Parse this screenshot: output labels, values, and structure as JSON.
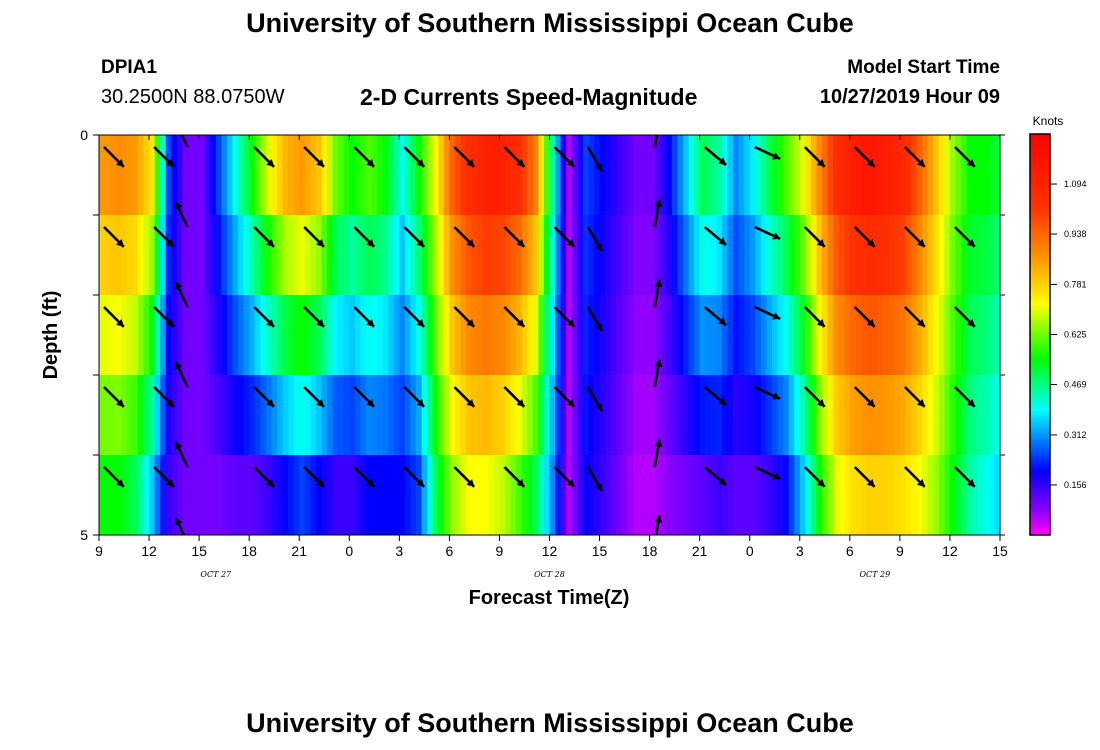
{
  "header": {
    "title": "University of Southern Mississippi Ocean Cube",
    "station_id": "DPIA1",
    "station_coords": "30.2500N 88.0750W",
    "subtitle": "2-D Currents Speed-Magnitude",
    "model_start_label": "Model Start Time",
    "model_start_value": "10/27/2019 Hour 09"
  },
  "footer": {
    "title": "University of Southern Mississippi Ocean Cube"
  },
  "chart_data": {
    "type": "heatmap",
    "title": "2-D Currents Speed-Magnitude",
    "xlabel": "Forecast Time(Z)",
    "ylabel": "Depth (ft)",
    "x_tick_labels": [
      "9",
      "12",
      "15",
      "18",
      "21",
      "0",
      "3",
      "6",
      "9",
      "12",
      "15",
      "18",
      "21",
      "0",
      "3",
      "6",
      "9",
      "12",
      "15"
    ],
    "x_date_labels": [
      {
        "label": "OCT 27",
        "hour_index": 7
      },
      {
        "label": "OCT 28",
        "hour_index": 27
      },
      {
        "label": "OCT 29",
        "hour_index": 46.5
      }
    ],
    "x_range_hours": [
      0,
      54
    ],
    "y_tick_labels": [
      "0",
      "5"
    ],
    "ylim": [
      0,
      5
    ],
    "depth_rows": 5,
    "colorbar": {
      "unit": "Knots",
      "ticks": [
        "1.094",
        "0.938",
        "0.781",
        "0.625",
        "0.469",
        "0.312",
        "0.156"
      ],
      "tick_values": [
        1.094,
        0.938,
        0.781,
        0.625,
        0.469,
        0.312,
        0.156
      ],
      "range": [
        0,
        1.25
      ],
      "stops": [
        {
          "v": 0.0,
          "c": "#ff00ff"
        },
        {
          "v": 0.08,
          "c": "#8a00ff"
        },
        {
          "v": 0.2,
          "c": "#0000ff"
        },
        {
          "v": 0.39,
          "c": "#00ffff"
        },
        {
          "v": 0.55,
          "c": "#00ff00"
        },
        {
          "v": 0.72,
          "c": "#ffff00"
        },
        {
          "v": 0.86,
          "c": "#ff9900"
        },
        {
          "v": 1.02,
          "c": "#ff3300"
        },
        {
          "v": 1.25,
          "c": "#ff0000"
        }
      ]
    },
    "speed_by_hour": {
      "hours": [
        0,
        1,
        2,
        3,
        4,
        5,
        6,
        7,
        8,
        9,
        10,
        11,
        12,
        13,
        14,
        15,
        16,
        17,
        18,
        19,
        20,
        21,
        22,
        23,
        24,
        25,
        26,
        27,
        28,
        29,
        30,
        31,
        32,
        33,
        34,
        35,
        36,
        37,
        38,
        39,
        40,
        41,
        42,
        43,
        44,
        45,
        46,
        47,
        48,
        49,
        50,
        51,
        52,
        53,
        54
      ],
      "surface": [
        0.86,
        0.88,
        0.86,
        0.75,
        0.25,
        0.1,
        0.1,
        0.25,
        0.4,
        0.55,
        0.7,
        0.82,
        0.86,
        0.8,
        0.62,
        0.55,
        0.6,
        0.55,
        0.4,
        0.55,
        0.72,
        0.95,
        1.05,
        1.1,
        1.1,
        1.05,
        0.9,
        0.45,
        0.05,
        0.25,
        0.2,
        0.15,
        0.1,
        0.1,
        0.2,
        0.35,
        0.5,
        0.45,
        0.3,
        0.38,
        0.5,
        0.6,
        0.7,
        0.88,
        1.05,
        1.12,
        1.15,
        1.12,
        1.08,
        0.95,
        0.8,
        0.65,
        0.55,
        0.55,
        0.5
      ],
      "bottom": [
        0.55,
        0.55,
        0.5,
        0.35,
        0.15,
        0.1,
        0.1,
        0.1,
        0.12,
        0.12,
        0.15,
        0.2,
        0.25,
        0.2,
        0.15,
        0.15,
        0.2,
        0.2,
        0.2,
        0.25,
        0.5,
        0.65,
        0.72,
        0.72,
        0.68,
        0.6,
        0.5,
        0.3,
        0.05,
        0.2,
        0.15,
        0.1,
        0.05,
        0.05,
        0.08,
        0.1,
        0.12,
        0.15,
        0.12,
        0.12,
        0.15,
        0.2,
        0.35,
        0.55,
        0.7,
        0.76,
        0.78,
        0.78,
        0.76,
        0.72,
        0.65,
        0.55,
        0.45,
        0.4,
        0.35
      ]
    },
    "vectors": {
      "columns_hour": [
        0.3,
        3.3,
        5.3,
        9.3,
        12.3,
        15.3,
        18.3,
        21.3,
        24.3,
        27.3,
        29.3,
        33.3,
        36.3,
        39.3,
        42.3,
        45.3,
        48.3,
        51.3
      ],
      "row_depth": [
        0.05,
        1.05,
        2.05,
        3.05,
        4.05,
        5.0
      ],
      "direction_deg_by_column": [
        135,
        135,
        335,
        135,
        135,
        135,
        135,
        135,
        135,
        135,
        150,
        10,
        130,
        115,
        135,
        135,
        135,
        135
      ]
    }
  }
}
